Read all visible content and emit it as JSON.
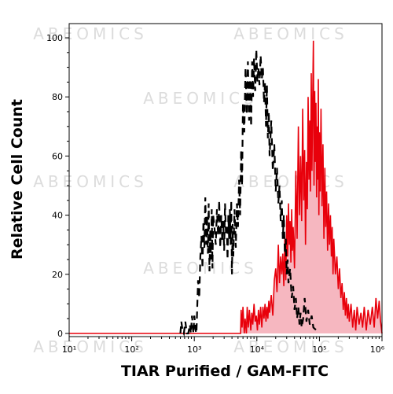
{
  "chart_data": {
    "type": "area",
    "xlabel": "TIAR Purified / GAM-FITC",
    "ylabel": "Relative Cell Count",
    "x_scale": "log",
    "xlim": [
      10,
      1000000
    ],
    "ylim": [
      0,
      100
    ],
    "grid": false,
    "legend": "none",
    "x_tick_labels": [
      "10¹",
      "10²",
      "10³",
      "10⁴",
      "10⁵",
      "10⁶"
    ],
    "y_ticks": [
      0,
      20,
      40,
      60,
      80,
      100
    ],
    "watermark": "ABEOMICS",
    "series": [
      {
        "style": "dashed",
        "color": "#000000",
        "points": [
          [
            600,
            0
          ],
          [
            620,
            4
          ],
          [
            650,
            1
          ],
          [
            680,
            0
          ],
          [
            720,
            4
          ],
          [
            760,
            0
          ],
          [
            800,
            0
          ],
          [
            850,
            3
          ],
          [
            880,
            0
          ],
          [
            920,
            6
          ],
          [
            970,
            0
          ],
          [
            1000,
            6
          ],
          [
            1050,
            1
          ],
          [
            1080,
            0
          ],
          [
            1150,
            18
          ],
          [
            1200,
            12
          ],
          [
            1250,
            26
          ],
          [
            1300,
            33
          ],
          [
            1350,
            22
          ],
          [
            1400,
            38
          ],
          [
            1450,
            29
          ],
          [
            1500,
            46
          ],
          [
            1550,
            30
          ],
          [
            1600,
            40
          ],
          [
            1650,
            27
          ],
          [
            1700,
            44
          ],
          [
            1750,
            21
          ],
          [
            1800,
            35
          ],
          [
            1850,
            25
          ],
          [
            1900,
            42
          ],
          [
            1950,
            22
          ],
          [
            2000,
            40
          ],
          [
            2100,
            36
          ],
          [
            2200,
            30
          ],
          [
            2300,
            42
          ],
          [
            2400,
            33
          ],
          [
            2500,
            45
          ],
          [
            2600,
            29
          ],
          [
            2700,
            40
          ],
          [
            2800,
            31
          ],
          [
            2900,
            38
          ],
          [
            3000,
            28
          ],
          [
            3100,
            44
          ],
          [
            3200,
            34
          ],
          [
            3300,
            36
          ],
          [
            3400,
            25
          ],
          [
            3500,
            40
          ],
          [
            3600,
            32
          ],
          [
            3700,
            42
          ],
          [
            3800,
            30
          ],
          [
            3900,
            45
          ],
          [
            4000,
            20
          ],
          [
            4100,
            37
          ],
          [
            4200,
            26
          ],
          [
            4400,
            42
          ],
          [
            4600,
            29
          ],
          [
            4800,
            44
          ],
          [
            5000,
            36
          ],
          [
            5200,
            52
          ],
          [
            5400,
            40
          ],
          [
            5600,
            62
          ],
          [
            5800,
            50
          ],
          [
            6000,
            78
          ],
          [
            6300,
            68
          ],
          [
            6600,
            90
          ],
          [
            6900,
            74
          ],
          [
            7200,
            92
          ],
          [
            7500,
            72
          ],
          [
            7800,
            86
          ],
          [
            8100,
            70
          ],
          [
            8400,
            92
          ],
          [
            8700,
            80
          ],
          [
            9000,
            93
          ],
          [
            9400,
            82
          ],
          [
            9800,
            96
          ],
          [
            10200,
            85
          ],
          [
            10600,
            90
          ],
          [
            11000,
            84
          ],
          [
            11500,
            94
          ],
          [
            12000,
            86
          ],
          [
            12500,
            90
          ],
          [
            13000,
            78
          ],
          [
            13500,
            85
          ],
          [
            14000,
            70
          ],
          [
            14500,
            84
          ],
          [
            15000,
            66
          ],
          [
            15500,
            75
          ],
          [
            16000,
            60
          ],
          [
            17000,
            72
          ],
          [
            18000,
            55
          ],
          [
            19000,
            64
          ],
          [
            20000,
            48
          ],
          [
            21000,
            56
          ],
          [
            22000,
            44
          ],
          [
            23000,
            50
          ],
          [
            24000,
            38
          ],
          [
            25000,
            45
          ],
          [
            26000,
            32
          ],
          [
            27000,
            40
          ],
          [
            28000,
            27
          ],
          [
            29000,
            32
          ],
          [
            30000,
            20
          ],
          [
            31000,
            25
          ],
          [
            32000,
            17
          ],
          [
            34000,
            22
          ],
          [
            36000,
            12
          ],
          [
            38000,
            16
          ],
          [
            40000,
            8
          ],
          [
            42000,
            12
          ],
          [
            44000,
            5
          ],
          [
            46000,
            9
          ],
          [
            48000,
            3
          ],
          [
            50000,
            7
          ],
          [
            52000,
            2
          ],
          [
            55000,
            5
          ],
          [
            58000,
            12
          ],
          [
            62000,
            4
          ],
          [
            66000,
            8
          ],
          [
            70000,
            3
          ],
          [
            75000,
            6
          ],
          [
            80000,
            2
          ],
          [
            90000,
            1
          ],
          [
            95000,
            0
          ]
        ]
      },
      {
        "style": "filled",
        "color": "#e8000b",
        "fill": "#f6b7c0",
        "points": [
          [
            10,
            0
          ],
          [
            5500,
            0
          ],
          [
            5600,
            8
          ],
          [
            5800,
            2
          ],
          [
            6000,
            9
          ],
          [
            6300,
            0
          ],
          [
            6500,
            5
          ],
          [
            6800,
            0
          ],
          [
            7000,
            9
          ],
          [
            7300,
            2
          ],
          [
            7600,
            8
          ],
          [
            8000,
            1
          ],
          [
            8300,
            7
          ],
          [
            8600,
            3
          ],
          [
            9000,
            10
          ],
          [
            9400,
            4
          ],
          [
            9800,
            6
          ],
          [
            10200,
            1
          ],
          [
            10600,
            8
          ],
          [
            11000,
            3
          ],
          [
            11500,
            9
          ],
          [
            12000,
            2
          ],
          [
            12500,
            9
          ],
          [
            13000,
            5
          ],
          [
            13500,
            10
          ],
          [
            14000,
            4
          ],
          [
            14500,
            9
          ],
          [
            15000,
            5
          ],
          [
            15500,
            11
          ],
          [
            16000,
            7
          ],
          [
            17000,
            13
          ],
          [
            18000,
            6
          ],
          [
            19000,
            18
          ],
          [
            20000,
            22
          ],
          [
            21000,
            14
          ],
          [
            22000,
            30
          ],
          [
            23000,
            17
          ],
          [
            24000,
            26
          ],
          [
            25000,
            20
          ],
          [
            26000,
            27
          ],
          [
            27000,
            16
          ],
          [
            28000,
            32
          ],
          [
            29000,
            18
          ],
          [
            30000,
            40
          ],
          [
            31000,
            26
          ],
          [
            32000,
            44
          ],
          [
            33000,
            30
          ],
          [
            34000,
            38
          ],
          [
            35000,
            24
          ],
          [
            36000,
            42
          ],
          [
            37000,
            28
          ],
          [
            38000,
            36
          ],
          [
            40000,
            22
          ],
          [
            42000,
            55
          ],
          [
            44000,
            32
          ],
          [
            46000,
            70
          ],
          [
            48000,
            40
          ],
          [
            50000,
            60
          ],
          [
            52000,
            38
          ],
          [
            54000,
            76
          ],
          [
            56000,
            45
          ],
          [
            58000,
            62
          ],
          [
            60000,
            30
          ],
          [
            62000,
            58
          ],
          [
            64000,
            42
          ],
          [
            66000,
            80
          ],
          [
            68000,
            52
          ],
          [
            70000,
            72
          ],
          [
            72000,
            48
          ],
          [
            74000,
            88
          ],
          [
            76000,
            55
          ],
          [
            78000,
            79
          ],
          [
            80000,
            99
          ],
          [
            82000,
            50
          ],
          [
            84000,
            82
          ],
          [
            86000,
            58
          ],
          [
            88000,
            78
          ],
          [
            90000,
            46
          ],
          [
            92000,
            70
          ],
          [
            94000,
            52
          ],
          [
            96000,
            86
          ],
          [
            98000,
            40
          ],
          [
            100000,
            68
          ],
          [
            103000,
            48
          ],
          [
            106000,
            76
          ],
          [
            110000,
            43
          ],
          [
            114000,
            64
          ],
          [
            118000,
            32
          ],
          [
            122000,
            56
          ],
          [
            126000,
            36
          ],
          [
            130000,
            48
          ],
          [
            135000,
            28
          ],
          [
            140000,
            44
          ],
          [
            145000,
            30
          ],
          [
            150000,
            40
          ],
          [
            155000,
            26
          ],
          [
            160000,
            36
          ],
          [
            165000,
            20
          ],
          [
            170000,
            32
          ],
          [
            180000,
            20
          ],
          [
            190000,
            26
          ],
          [
            200000,
            15
          ],
          [
            210000,
            22
          ],
          [
            220000,
            12
          ],
          [
            230000,
            17
          ],
          [
            240000,
            8
          ],
          [
            250000,
            14
          ],
          [
            260000,
            6
          ],
          [
            270000,
            12
          ],
          [
            280000,
            5
          ],
          [
            290000,
            10
          ],
          [
            300000,
            4
          ],
          [
            320000,
            10
          ],
          [
            340000,
            2
          ],
          [
            360000,
            8
          ],
          [
            380000,
            1
          ],
          [
            400000,
            9
          ],
          [
            430000,
            3
          ],
          [
            460000,
            7
          ],
          [
            490000,
            2
          ],
          [
            520000,
            9
          ],
          [
            560000,
            1
          ],
          [
            600000,
            8
          ],
          [
            650000,
            3
          ],
          [
            700000,
            9
          ],
          [
            750000,
            2
          ],
          [
            800000,
            12
          ],
          [
            850000,
            5
          ],
          [
            900000,
            11
          ],
          [
            950000,
            4
          ],
          [
            1000000,
            0
          ]
        ]
      }
    ]
  }
}
